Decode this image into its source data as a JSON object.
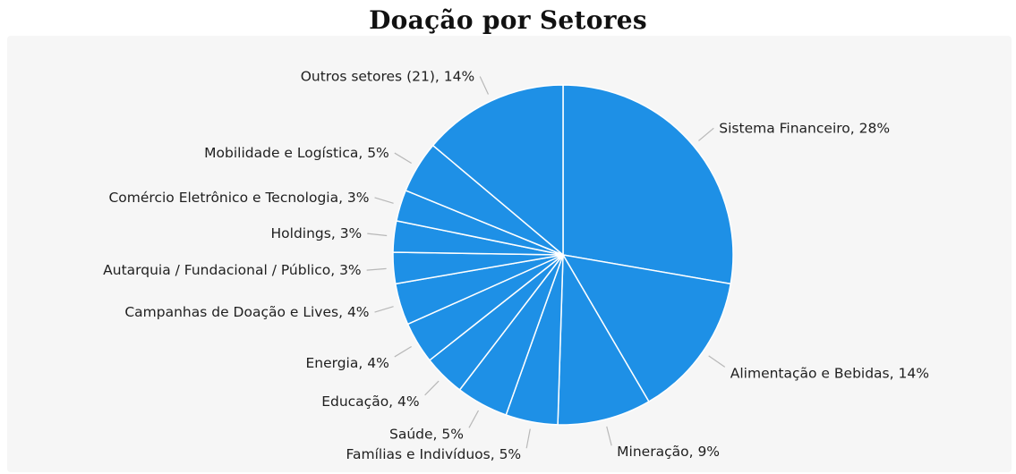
{
  "colors": {
    "slice": "#1e90e6",
    "slice_border": "#ffffff",
    "leader": "#b8b8b8",
    "label_text": "#1f1f1f",
    "panel_background": "#f6f6f6"
  },
  "chart_data": {
    "type": "pie",
    "title": "Doação por Setores",
    "legend": "none",
    "slices": [
      {
        "label": "Sistema Financeiro",
        "value": 28,
        "text": "Sistema Financeiro, 28%"
      },
      {
        "label": "Alimentação e Bebidas",
        "value": 14,
        "text": "Alimentação e Bebidas, 14%"
      },
      {
        "label": "Mineração",
        "value": 9,
        "text": "Mineração, 9%"
      },
      {
        "label": "Famílias e Indivíduos",
        "value": 5,
        "text": "Famílias e Indivíduos, 5%"
      },
      {
        "label": "Saúde",
        "value": 5,
        "text": "Saúde, 5%"
      },
      {
        "label": "Educação",
        "value": 4,
        "text": "Educação, 4%"
      },
      {
        "label": "Energia",
        "value": 4,
        "text": "Energia, 4%"
      },
      {
        "label": "Campanhas de Doação e Lives",
        "value": 4,
        "text": "Campanhas de Doação e Lives, 4%"
      },
      {
        "label": "Autarquia / Fundacional / Público",
        "value": 3,
        "text": "Autarquia / Fundacional / Público, 3%"
      },
      {
        "label": "Holdings",
        "value": 3,
        "text": "Holdings, 3%"
      },
      {
        "label": "Comércio Eletrônico e Tecnologia",
        "value": 3,
        "text": "Comércio Eletrônico e Tecnologia, 3%"
      },
      {
        "label": "Mobilidade e Logística",
        "value": 5,
        "text": "Mobilidade e Logística, 5%"
      },
      {
        "label": "Outros setores (21)",
        "value": 14,
        "text": "Outros setores (21), 14%"
      }
    ]
  }
}
